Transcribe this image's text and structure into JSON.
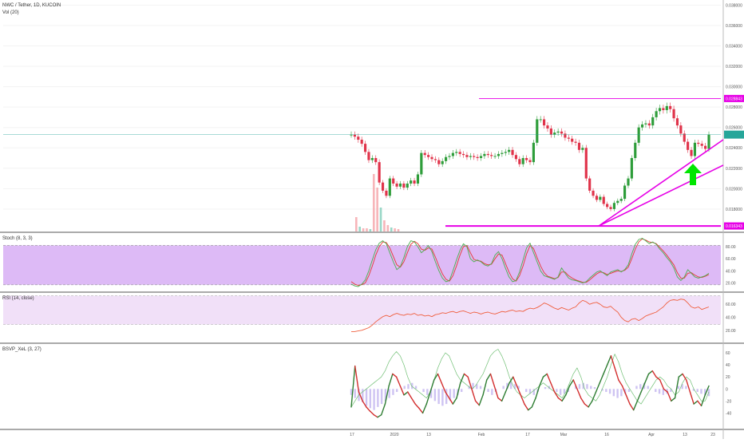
{
  "header": {
    "symbol": "NWC / Tether, 1D, KUCOIN",
    "volume_label": "Vol (20)"
  },
  "panes": {
    "stoch": {
      "title": "Stoch (8, 3, 3)"
    },
    "rsi": {
      "title": "RSI (14, close)"
    },
    "bsvp": {
      "title": "BSVP_XeL (3, 27)"
    }
  },
  "colors": {
    "up": "#26a69a",
    "up_bright": "#2e9d3a",
    "down": "#e0334a",
    "price_line": "#26a69a",
    "annotation": "#e600e6",
    "arrow": "#00e600",
    "stoch_band": "#d9b3f5",
    "stoch_k": "#4caf50",
    "stoch_d": "#e53935",
    "rsi_band": "#f0ddf7",
    "rsi_line": "#f06040",
    "bsvp_pos": "#2e7d32",
    "bsvp_neg": "#d32f2f",
    "bsvp_hist": "#c6b8f0"
  },
  "chart_data": [
    {
      "type": "candlestick",
      "title": "NWC / Tether, 1D, KUCOIN",
      "y_ticks": [
        "0.038000",
        "0.036000",
        "0.034000",
        "0.032000",
        "0.030000",
        "0.028000",
        "0.026000",
        "0.024000",
        "0.022000",
        "0.020000",
        "0.018000"
      ],
      "ylim": [
        0.0158,
        0.0385
      ],
      "x_ticks": [
        "17",
        "2020",
        "13",
        "Feb",
        "17",
        "Mar",
        "16",
        "Apr",
        "13",
        "23"
      ],
      "price_labels": [
        {
          "value": "0.028843",
          "price": 0.02884,
          "style": "annotation"
        },
        {
          "value": "0.016343",
          "price": 0.01634,
          "style": "annotation"
        }
      ],
      "current_price": 0.0253,
      "annotations": {
        "resistance": 0.02884,
        "support": 0.01634,
        "trendline_1": [
          [
            0,
            0.01634
          ],
          [
            1,
            0.0248
          ]
        ],
        "trendline_2": [
          [
            0,
            0.01634
          ],
          [
            1,
            0.0223
          ]
        ],
        "arrow": "up"
      },
      "close": [
        0.0253,
        0.0251,
        0.0248,
        0.0244,
        0.0236,
        0.0228,
        0.023,
        0.0226,
        0.0206,
        0.0198,
        0.0193,
        0.021,
        0.0205,
        0.0202,
        0.0205,
        0.0201,
        0.0205,
        0.0208,
        0.0205,
        0.0214,
        0.0235,
        0.0233,
        0.0231,
        0.0229,
        0.0228,
        0.0224,
        0.0227,
        0.0231,
        0.0232,
        0.0235,
        0.0236,
        0.0234,
        0.0233,
        0.0231,
        0.0232,
        0.0231,
        0.023,
        0.0232,
        0.0234,
        0.0233,
        0.0232,
        0.0232,
        0.0234,
        0.0235,
        0.0236,
        0.0238,
        0.0233,
        0.0229,
        0.0224,
        0.023,
        0.0228,
        0.0226,
        0.0245,
        0.0268,
        0.0268,
        0.0262,
        0.0259,
        0.0253,
        0.0255,
        0.0256,
        0.0254,
        0.025,
        0.0249,
        0.0246,
        0.0245,
        0.0238,
        0.024,
        0.021,
        0.0198,
        0.0193,
        0.0189,
        0.0192,
        0.0185,
        0.0182,
        0.018,
        0.0186,
        0.0188,
        0.019,
        0.0203,
        0.021,
        0.023,
        0.0245,
        0.026,
        0.0263,
        0.0264,
        0.0262,
        0.027,
        0.0276,
        0.0279,
        0.0277,
        0.0281,
        0.0278,
        0.0269,
        0.0262,
        0.0254,
        0.0246,
        0.0238,
        0.0232,
        0.0245,
        0.0244,
        0.0242,
        0.0239,
        0.0253
      ]
    },
    {
      "type": "line",
      "title": "Stoch (8, 3, 3)",
      "y_ticks": [
        "80.00",
        "60.00",
        "40.00",
        "20.00"
      ],
      "ylim": [
        10,
        100
      ],
      "band": [
        20,
        80
      ],
      "series": [
        {
          "values": [
            18,
            15,
            14,
            18,
            25,
            40,
            58,
            75,
            86,
            90,
            85,
            70,
            55,
            42,
            47,
            62,
            80,
            90,
            88,
            80,
            70,
            75,
            82,
            72,
            55,
            40,
            28,
            22,
            24,
            40,
            58,
            74,
            85,
            80,
            60,
            55,
            58,
            55,
            50,
            48,
            52,
            66,
            72,
            60,
            44,
            30,
            22,
            24,
            38,
            58,
            78,
            86,
            70,
            55,
            40,
            32,
            30,
            28,
            26,
            30,
            45,
            36,
            28,
            25,
            24,
            22,
            20,
            22,
            28,
            33,
            38,
            40,
            36,
            32,
            38,
            40,
            42,
            38,
            42,
            50,
            68,
            84,
            92,
            94,
            90,
            85,
            88,
            84,
            76,
            70,
            62,
            55,
            45,
            30,
            24,
            30,
            42,
            36,
            30,
            28,
            30,
            32,
            36
          ]
        },
        {
          "values": [
            22,
            18,
            16,
            17,
            20,
            32,
            48,
            66,
            80,
            88,
            87,
            78,
            64,
            50,
            46,
            55,
            70,
            84,
            89,
            85,
            76,
            74,
            78,
            76,
            63,
            48,
            35,
            26,
            23,
            32,
            48,
            66,
            80,
            82,
            70,
            59,
            57,
            56,
            52,
            50,
            51,
            60,
            68,
            66,
            52,
            38,
            27,
            23,
            32,
            48,
            68,
            82,
            77,
            62,
            48,
            37,
            31,
            29,
            27,
            29,
            38,
            38,
            32,
            28,
            25,
            23,
            21,
            21,
            25,
            30,
            35,
            38,
            37,
            34,
            36,
            38,
            40,
            39,
            41,
            46,
            60,
            76,
            88,
            93,
            91,
            88,
            87,
            85,
            79,
            73,
            66,
            58,
            50,
            37,
            28,
            28,
            36,
            37,
            33,
            30,
            29,
            31,
            34
          ]
        }
      ]
    },
    {
      "type": "line",
      "title": "RSI (14, close)",
      "y_ticks": [
        "60.00",
        "40.00",
        "20.00"
      ],
      "ylim": [
        5,
        75
      ],
      "band": [
        30,
        70
      ],
      "series": [
        {
          "values": [
            18,
            18,
            19,
            20,
            22,
            24,
            28,
            33,
            37,
            41,
            43,
            41,
            44,
            46,
            44,
            43,
            45,
            44,
            46,
            43,
            44,
            42,
            43,
            41,
            44,
            45,
            47,
            46,
            48,
            49,
            47,
            49,
            50,
            48,
            46,
            48,
            47,
            45,
            47,
            48,
            46,
            45,
            47,
            49,
            48,
            50,
            51,
            49,
            50,
            49,
            52,
            54,
            53,
            55,
            58,
            62,
            60,
            57,
            54,
            52,
            55,
            53,
            51,
            54,
            56,
            62,
            66,
            64,
            60,
            62,
            63,
            60,
            56,
            55,
            57,
            52,
            48,
            40,
            35,
            33,
            37,
            38,
            35,
            38,
            42,
            44,
            46,
            48,
            52,
            56,
            62,
            66,
            67,
            66,
            68,
            67,
            62,
            56,
            54,
            56,
            52,
            54,
            56
          ]
        }
      ]
    },
    {
      "type": "line",
      "title": "BSVP_XeL (3, 27)",
      "y_ticks": [
        "60",
        "40",
        "20",
        "0",
        "-20",
        "-40"
      ],
      "ylim": [
        -62,
        72
      ],
      "series": [
        {
          "values": [
            -30,
            38,
            -5,
            -20,
            -30,
            -37,
            -43,
            -47,
            -43,
            -25,
            5,
            25,
            20,
            5,
            -10,
            -5,
            -15,
            -25,
            -32,
            -40,
            -25,
            -5,
            15,
            25,
            10,
            -5,
            -15,
            -25,
            -15,
            10,
            25,
            20,
            0,
            -20,
            -27,
            -10,
            15,
            25,
            5,
            -15,
            -20,
            -5,
            10,
            20,
            5,
            -10,
            -25,
            -35,
            -30,
            -15,
            5,
            20,
            25,
            10,
            -5,
            -15,
            -20,
            -10,
            5,
            15,
            0,
            -15,
            -25,
            -30,
            -20,
            -5,
            10,
            25,
            40,
            55,
            35,
            15,
            5,
            -10,
            -25,
            -35,
            -20,
            -5,
            10,
            25,
            30,
            20,
            15,
            0,
            -5,
            -20,
            -15,
            20,
            25,
            15,
            -5,
            -25,
            -20,
            -28,
            -10,
            5
          ]
        },
        {
          "values": [
            -30,
            -20,
            -10,
            -5,
            0,
            5,
            10,
            15,
            20,
            30,
            45,
            55,
            62,
            55,
            40,
            20,
            5,
            0,
            -5,
            -10,
            -15,
            -5,
            15,
            35,
            50,
            60,
            55,
            40,
            25,
            15,
            10,
            5,
            0,
            5,
            15,
            25,
            40,
            55,
            62,
            66,
            55,
            40,
            20,
            5,
            -5,
            -10,
            -15,
            -10,
            -5,
            0,
            5,
            10,
            5,
            0,
            -5,
            -10,
            -15,
            -5,
            10,
            25,
            35,
            20,
            0,
            -10,
            -15,
            -20,
            -10,
            5,
            20,
            40,
            58,
            45,
            25,
            10,
            0,
            -10,
            -20,
            -25,
            -15,
            -5,
            5,
            15,
            20,
            15,
            5,
            0,
            -10,
            -5,
            10,
            20,
            15,
            0,
            -10,
            -20,
            -20,
            -5
          ]
        }
      ],
      "histogram": [
        -10,
        -15,
        -20,
        -22,
        -28,
        -32,
        -35,
        -30,
        -25,
        -20,
        -15,
        -10,
        -5,
        0,
        5,
        8,
        10,
        5,
        0,
        -5,
        -10,
        -15,
        -20,
        -25,
        -28,
        -25,
        -20,
        -15,
        -10,
        -5,
        0,
        5,
        10,
        8,
        5,
        0,
        -5,
        -10,
        -5,
        0,
        5,
        10,
        12,
        8,
        5,
        0,
        -5,
        -8,
        -10,
        -5,
        0,
        3,
        5,
        0,
        -5,
        -10,
        -8,
        -5,
        0,
        5,
        8,
        10,
        8,
        5,
        3,
        0,
        -3,
        -5,
        -8,
        -12,
        -15,
        -12,
        -8,
        -5,
        0,
        5,
        8,
        10,
        5,
        0,
        -5,
        -8,
        -10,
        -8,
        -5,
        0,
        5,
        8,
        5,
        0,
        -3,
        -5,
        -8,
        -10,
        -12
      ]
    }
  ]
}
